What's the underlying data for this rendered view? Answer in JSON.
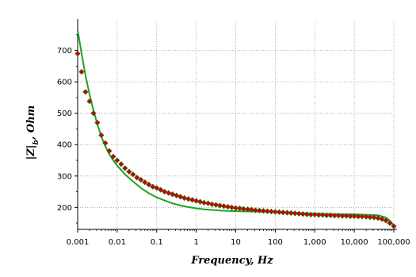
{
  "chart_data": {
    "type": "scatter",
    "xlabel": "Frequency, Hz",
    "ylabel_parts": {
      "main": "|Z|",
      "sub": "b",
      "unit": "Ohm"
    },
    "x_scale": "log",
    "xlim": [
      0.001,
      100000
    ],
    "ylim": [
      130,
      790
    ],
    "grid": true,
    "x_ticks": [
      {
        "value": 0.001,
        "label": "0.001"
      },
      {
        "value": 0.01,
        "label": "0.01"
      },
      {
        "value": 0.1,
        "label": "0.1"
      },
      {
        "value": 1,
        "label": "1"
      },
      {
        "value": 10,
        "label": "10"
      },
      {
        "value": 100,
        "label": "100"
      },
      {
        "value": 1000,
        "label": "1,000"
      },
      {
        "value": 10000,
        "label": "10,000"
      },
      {
        "value": 100000,
        "label": "100,000"
      }
    ],
    "y_ticks": [
      {
        "value": 200,
        "label": "200"
      },
      {
        "value": 300,
        "label": "300"
      },
      {
        "value": 400,
        "label": "400"
      },
      {
        "value": 500,
        "label": "500"
      },
      {
        "value": 600,
        "label": "600"
      },
      {
        "value": 700,
        "label": "700"
      }
    ],
    "series": [
      {
        "kind": "markers",
        "color": "#cc0000",
        "edge_color": "#1a7a1a",
        "points": [
          [
            0.001,
            690
          ],
          [
            0.00126,
            632
          ],
          [
            0.00158,
            568
          ],
          [
            0.002,
            538
          ],
          [
            0.00251,
            500
          ],
          [
            0.00316,
            470
          ],
          [
            0.00398,
            430
          ],
          [
            0.00501,
            405
          ],
          [
            0.00631,
            380
          ],
          [
            0.00794,
            362
          ],
          [
            0.01,
            350
          ],
          [
            0.0126,
            338
          ],
          [
            0.0158,
            325
          ],
          [
            0.02,
            314
          ],
          [
            0.0251,
            305
          ],
          [
            0.0316,
            295
          ],
          [
            0.0398,
            288
          ],
          [
            0.0501,
            280
          ],
          [
            0.0631,
            273
          ],
          [
            0.0794,
            266
          ],
          [
            0.1,
            262
          ],
          [
            0.126,
            256
          ],
          [
            0.158,
            250
          ],
          [
            0.2,
            246
          ],
          [
            0.251,
            242
          ],
          [
            0.316,
            238
          ],
          [
            0.398,
            234
          ],
          [
            0.501,
            230
          ],
          [
            0.631,
            227
          ],
          [
            0.794,
            224
          ],
          [
            1,
            221
          ],
          [
            1.26,
            218
          ],
          [
            1.58,
            215
          ],
          [
            2,
            213
          ],
          [
            2.51,
            210
          ],
          [
            3.16,
            208
          ],
          [
            3.98,
            206
          ],
          [
            5.01,
            204
          ],
          [
            6.31,
            202
          ],
          [
            7.94,
            200
          ],
          [
            10,
            198
          ],
          [
            12.6,
            197
          ],
          [
            15.8,
            195
          ],
          [
            20,
            194
          ],
          [
            25.1,
            193
          ],
          [
            31.6,
            191
          ],
          [
            39.8,
            190
          ],
          [
            50.1,
            189
          ],
          [
            63.1,
            188
          ],
          [
            79.4,
            187
          ],
          [
            100,
            186
          ],
          [
            126,
            185
          ],
          [
            158,
            184
          ],
          [
            200,
            183
          ],
          [
            251,
            182
          ],
          [
            316,
            181
          ],
          [
            398,
            180
          ],
          [
            501,
            179
          ],
          [
            631,
            178
          ],
          [
            794,
            177
          ],
          [
            1000,
            177
          ],
          [
            1260,
            176
          ],
          [
            1580,
            176
          ],
          [
            2000,
            175
          ],
          [
            2510,
            175
          ],
          [
            3160,
            174
          ],
          [
            3980,
            174
          ],
          [
            5010,
            173
          ],
          [
            6310,
            173
          ],
          [
            7940,
            172
          ],
          [
            10000,
            172
          ],
          [
            12600,
            171
          ],
          [
            15800,
            171
          ],
          [
            20000,
            170
          ],
          [
            25100,
            169
          ],
          [
            31600,
            168
          ],
          [
            39800,
            166
          ],
          [
            50100,
            163
          ],
          [
            63100,
            158
          ],
          [
            79400,
            150
          ],
          [
            100000,
            140
          ]
        ]
      },
      {
        "kind": "line",
        "color": "#22a022",
        "points": [
          [
            0.001,
            765
          ],
          [
            0.00126,
            690
          ],
          [
            0.00158,
            620
          ],
          [
            0.002,
            560
          ],
          [
            0.00251,
            510
          ],
          [
            0.00316,
            465
          ],
          [
            0.00398,
            425
          ],
          [
            0.00501,
            395
          ],
          [
            0.00631,
            370
          ],
          [
            0.00794,
            350
          ],
          [
            0.01,
            333
          ],
          [
            0.0158,
            305
          ],
          [
            0.0251,
            283
          ],
          [
            0.0398,
            262
          ],
          [
            0.0631,
            245
          ],
          [
            0.1,
            232
          ],
          [
            0.158,
            222
          ],
          [
            0.251,
            213
          ],
          [
            0.398,
            206
          ],
          [
            0.631,
            201
          ],
          [
            1,
            197
          ],
          [
            1.58,
            194
          ],
          [
            2.51,
            192
          ],
          [
            3.98,
            190
          ],
          [
            6.31,
            189
          ],
          [
            10,
            188
          ],
          [
            25.1,
            187
          ],
          [
            63.1,
            186
          ],
          [
            100,
            185
          ],
          [
            251,
            183
          ],
          [
            631,
            181
          ],
          [
            1000,
            180
          ],
          [
            2510,
            179
          ],
          [
            6310,
            178
          ],
          [
            10000,
            178
          ],
          [
            25100,
            176
          ],
          [
            39800,
            175
          ],
          [
            63100,
            168
          ],
          [
            79400,
            158
          ],
          [
            100000,
            142
          ]
        ]
      }
    ]
  }
}
